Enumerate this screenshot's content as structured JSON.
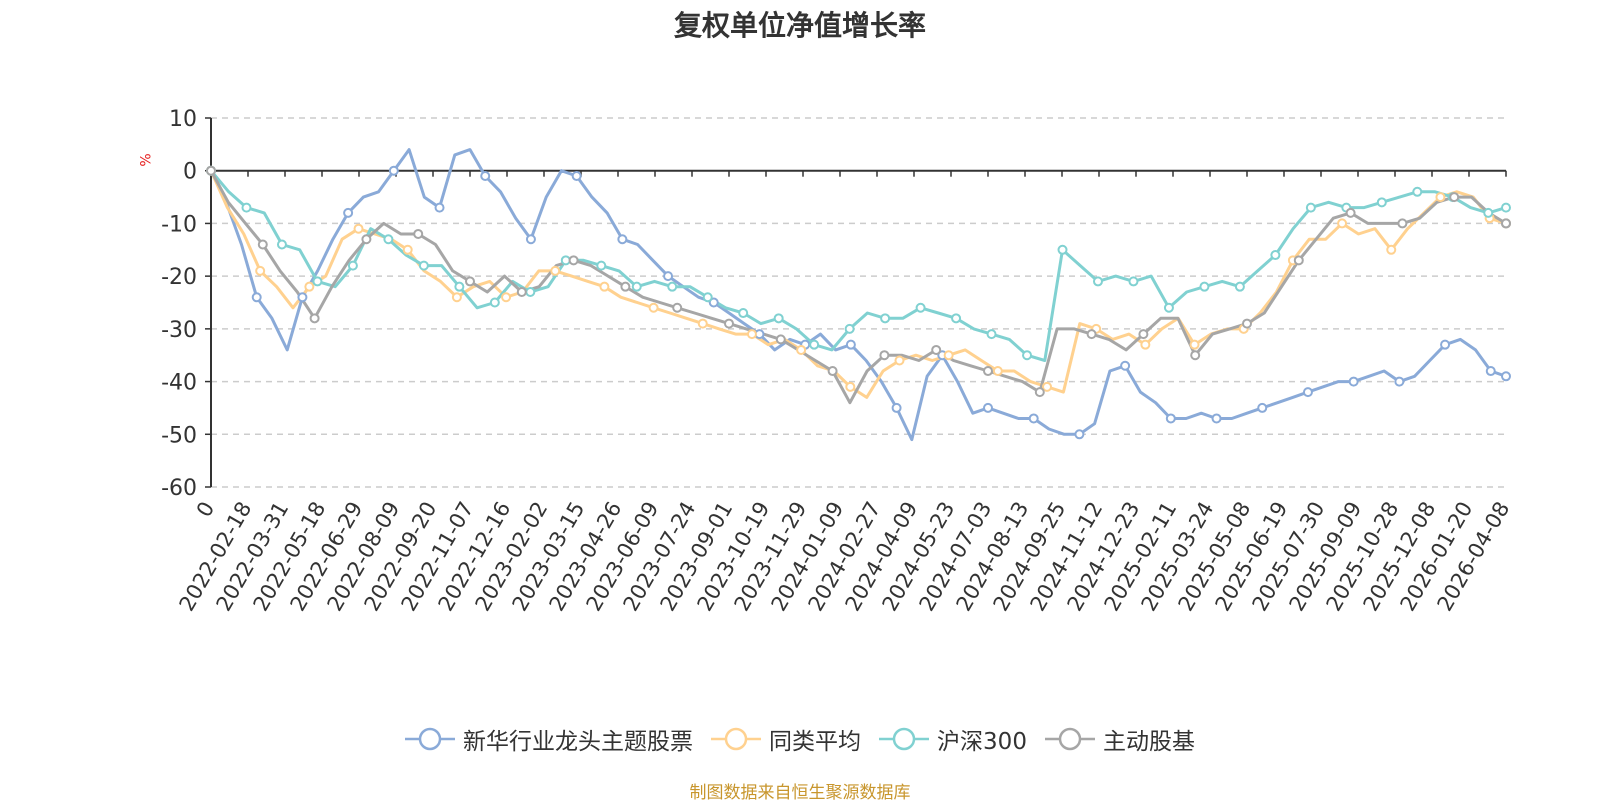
{
  "chart_data": {
    "type": "line",
    "title": "复权单位净值增长率",
    "ylabel": "%",
    "ylim": [
      -60,
      10
    ],
    "yticks": [
      10,
      0,
      -10,
      -20,
      -30,
      -40,
      -50,
      -60
    ],
    "ytick_labels": [
      "10",
      "0",
      "-10",
      "-20",
      "-30",
      "-40",
      "-50",
      "-60"
    ],
    "x_tick_labels": [
      "0",
      "2022-02-18",
      "2022-03-31",
      "2022-05-18",
      "2022-06-29",
      "2022-08-09",
      "2022-09-20",
      "2022-11-07",
      "2022-12-16",
      "2023-02-02",
      "2023-03-15",
      "2023-04-26",
      "2023-06-09",
      "2023-07-24",
      "2023-09-01",
      "2023-10-19",
      "2023-11-29",
      "2024-01-09",
      "2024-02-27",
      "2024-04-09",
      "2024-05-23",
      "2024-07-03",
      "2024-08-13",
      "2024-09-25",
      "2024-11-12",
      "2024-12-23",
      "2025-02-11",
      "2025-03-24",
      "2025-05-08",
      "2025-06-19",
      "2025-07-30",
      "2025-09-09",
      "2025-10-28",
      "2025-12-08",
      "2026-01-20",
      "2026-04-08"
    ],
    "grid": true,
    "legend_position": "bottom",
    "series": [
      {
        "name": "新华行业龙头主题股票",
        "color": "#8aaad8",
        "values": [
          0,
          -6,
          -14,
          -24,
          -28,
          -34,
          -24,
          -19,
          -13,
          -8,
          -5,
          -4,
          0,
          4,
          -5,
          -7,
          3,
          4,
          -1,
          -4,
          -9,
          -13,
          -5,
          0,
          -1,
          -5,
          -8,
          -13,
          -14,
          -17,
          -20,
          -22,
          -24,
          -25,
          -27,
          -29,
          -31,
          -34,
          -32,
          -33,
          -31,
          -34,
          -33,
          -36,
          -40,
          -45,
          -51,
          -39,
          -35,
          -40,
          -46,
          -45,
          -46,
          -47,
          -47,
          -49,
          -50,
          -50,
          -48,
          -38,
          -37,
          -42,
          -44,
          -47,
          -47,
          -46,
          -47,
          -47,
          -46,
          -45,
          -44,
          -43,
          -42,
          -41,
          -40,
          -40,
          -39,
          -38,
          -40,
          -39,
          -36,
          -33,
          -32,
          -34,
          -38,
          -39
        ]
      },
      {
        "name": "同类平均",
        "color": "#ffd18f",
        "values": [
          0,
          -7,
          -12,
          -19,
          -22,
          -26,
          -22,
          -20,
          -13,
          -11,
          -12,
          -13,
          -15,
          -19,
          -21,
          -24,
          -22,
          -21,
          -24,
          -23,
          -19,
          -19,
          -20,
          -21,
          -22,
          -24,
          -25,
          -26,
          -27,
          -28,
          -29,
          -30,
          -31,
          -31,
          -33,
          -32,
          -34,
          -37,
          -38,
          -41,
          -43,
          -38,
          -36,
          -35,
          -36,
          -35,
          -34,
          -36,
          -38,
          -38,
          -40,
          -41,
          -42,
          -29,
          -30,
          -32,
          -31,
          -33,
          -30,
          -28,
          -33,
          -31,
          -30,
          -30,
          -27,
          -23,
          -17,
          -13,
          -13,
          -10,
          -12,
          -11,
          -15,
          -11,
          -8,
          -5,
          -4,
          -5,
          -9,
          -10
        ]
      },
      {
        "name": "沪深300",
        "color": "#80d1d1",
        "values": [
          0,
          -4,
          -7,
          -8,
          -14,
          -15,
          -21,
          -22,
          -18,
          -11,
          -13,
          -16,
          -18,
          -18,
          -22,
          -26,
          -25,
          -21,
          -23,
          -22,
          -17,
          -17,
          -18,
          -19,
          -22,
          -21,
          -22,
          -22,
          -24,
          -26,
          -27,
          -29,
          -28,
          -30,
          -33,
          -34,
          -30,
          -27,
          -28,
          -28,
          -26,
          -27,
          -28,
          -30,
          -31,
          -32,
          -35,
          -36,
          -15,
          -18,
          -21,
          -20,
          -21,
          -20,
          -26,
          -23,
          -22,
          -21,
          -22,
          -19,
          -16,
          -11,
          -7,
          -6,
          -7,
          -7,
          -6,
          -5,
          -4,
          -4,
          -5,
          -7,
          -8,
          -7
        ]
      },
      {
        "name": "主动股基",
        "color": "#a6a6a6",
        "values": [
          0,
          -6,
          -10,
          -14,
          -19,
          -23,
          -28,
          -22,
          -17,
          -13,
          -10,
          -12,
          -12,
          -14,
          -19,
          -21,
          -23,
          -20,
          -23,
          -22,
          -18,
          -17,
          -18,
          -20,
          -22,
          -24,
          -25,
          -26,
          -27,
          -28,
          -29,
          -30,
          -31,
          -32,
          -34,
          -36,
          -38,
          -44,
          -38,
          -35,
          -35,
          -36,
          -34,
          -36,
          -37,
          -38,
          -39,
          -40,
          -42,
          -30,
          -30,
          -31,
          -32,
          -34,
          -31,
          -28,
          -28,
          -35,
          -31,
          -30,
          -29,
          -27,
          -22,
          -17,
          -13,
          -9,
          -8,
          -10,
          -10,
          -10,
          -9,
          -6,
          -5,
          -5,
          -8,
          -10
        ]
      }
    ]
  },
  "source_text": "制图数据来自恒生聚源数据库",
  "source_color": "#c8962d"
}
